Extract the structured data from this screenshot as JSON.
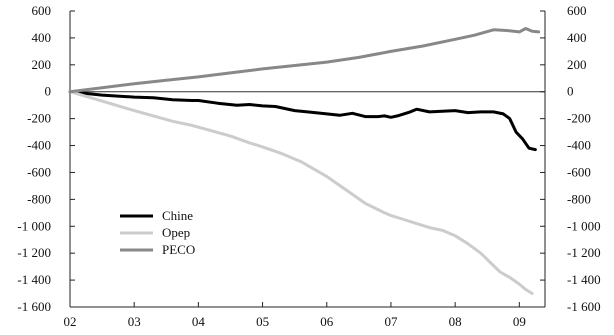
{
  "chart_data": {
    "type": "line",
    "title": "",
    "xlabel": "",
    "ylabel": "",
    "ylim": [
      -1600,
      600
    ],
    "y_ticks": [
      600,
      400,
      200,
      0,
      -200,
      -400,
      -600,
      -800,
      -1000,
      -1200,
      -1400,
      -1600
    ],
    "y_tick_labels": [
      "600",
      "400",
      "200",
      "0",
      "-200",
      "-400",
      "-600",
      "-800",
      "-1 000",
      "-1 200",
      "-1 400",
      "-1 600"
    ],
    "x_ticks": [
      2002,
      2003,
      2004,
      2005,
      2006,
      2007,
      2008,
      2009
    ],
    "x_tick_labels": [
      "02",
      "03",
      "04",
      "05",
      "06",
      "07",
      "08",
      "09"
    ],
    "xlim": [
      2002,
      2009.4
    ],
    "grid": false,
    "legend_position": "bottom-left",
    "series": [
      {
        "name": "Chine",
        "color": "#000000",
        "x": [
          2002.0,
          2002.5,
          2003.0,
          2003.3,
          2003.6,
          2003.9,
          2004.0,
          2004.3,
          2004.6,
          2004.8,
          2005.0,
          2005.2,
          2005.5,
          2005.7,
          2006.0,
          2006.2,
          2006.4,
          2006.6,
          2006.8,
          2006.9,
          2007.0,
          2007.1,
          2007.3,
          2007.4,
          2007.6,
          2007.8,
          2008.0,
          2008.2,
          2008.4,
          2008.6,
          2008.75,
          2008.85,
          2008.95,
          2009.05,
          2009.15,
          2009.25
        ],
        "values": [
          0,
          -25,
          -40,
          -45,
          -60,
          -65,
          -65,
          -85,
          -100,
          -95,
          -105,
          -110,
          -140,
          -150,
          -165,
          -175,
          -160,
          -185,
          -185,
          -180,
          -190,
          -180,
          -150,
          -130,
          -150,
          -145,
          -140,
          -155,
          -150,
          -150,
          -165,
          -200,
          -300,
          -350,
          -420,
          -430
        ]
      },
      {
        "name": "Opep",
        "color": "#cccccc",
        "x": [
          2002.0,
          2002.5,
          2003.0,
          2003.3,
          2003.6,
          2003.9,
          2004.2,
          2004.5,
          2004.8,
          2005.0,
          2005.3,
          2005.6,
          2006.0,
          2006.3,
          2006.6,
          2006.9,
          2007.0,
          2007.2,
          2007.4,
          2007.6,
          2007.8,
          2008.0,
          2008.2,
          2008.4,
          2008.55,
          2008.7,
          2008.85,
          2009.0,
          2009.1,
          2009.2
        ],
        "values": [
          0,
          -70,
          -140,
          -180,
          -220,
          -250,
          -290,
          -330,
          -380,
          -410,
          -460,
          -520,
          -630,
          -730,
          -830,
          -900,
          -920,
          -950,
          -980,
          -1010,
          -1030,
          -1070,
          -1130,
          -1200,
          -1270,
          -1340,
          -1380,
          -1430,
          -1470,
          -1500
        ]
      },
      {
        "name": "PECO",
        "color": "#888888",
        "x": [
          2002.0,
          2002.5,
          2003.0,
          2003.5,
          2004.0,
          2004.5,
          2005.0,
          2005.5,
          2006.0,
          2006.5,
          2007.0,
          2007.5,
          2008.0,
          2008.3,
          2008.6,
          2008.8,
          2009.0,
          2009.1,
          2009.2,
          2009.3
        ],
        "values": [
          0,
          30,
          60,
          85,
          110,
          140,
          170,
          195,
          220,
          255,
          300,
          340,
          390,
          420,
          460,
          455,
          445,
          470,
          450,
          445
        ]
      }
    ]
  }
}
